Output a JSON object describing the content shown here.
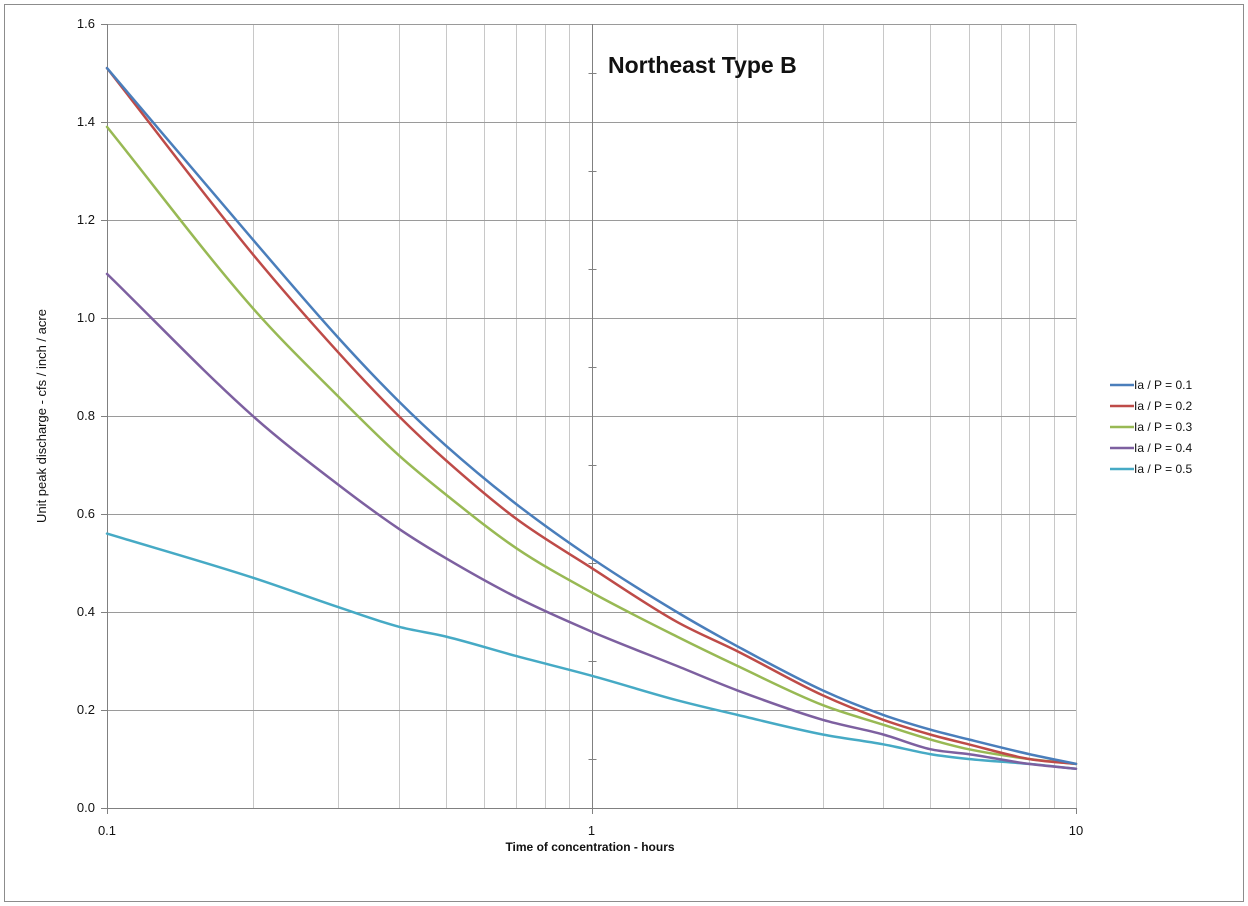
{
  "chart_data": {
    "type": "line",
    "title": "Northeast Type B",
    "xlabel": "Time of concentration - hours",
    "ylabel": "Unit peak discharge - cfs / inch / acre",
    "x_scale": "log",
    "xlim": [
      0.1,
      10
    ],
    "ylim": [
      0.0,
      1.6
    ],
    "x_ticks": [
      0.1,
      1,
      10
    ],
    "x_tick_labels": [
      "0.1",
      "1",
      "10"
    ],
    "y_ticks": [
      0.0,
      0.2,
      0.4,
      0.6,
      0.8,
      1.0,
      1.2,
      1.4,
      1.6
    ],
    "y_tick_labels": [
      "0.0",
      "0.2",
      "0.4",
      "0.6",
      "0.8",
      "1.0",
      "1.2",
      "1.4",
      "1.6"
    ],
    "grid": true,
    "legend_position": "right",
    "x": [
      0.1,
      0.2,
      0.3,
      0.4,
      0.5,
      0.7,
      1,
      1.5,
      2,
      3,
      4,
      5,
      6,
      8,
      10
    ],
    "series": [
      {
        "name": "Ia / P = 0.1",
        "color": "#4a7ebb",
        "values": [
          1.51,
          1.16,
          0.96,
          0.83,
          0.74,
          0.62,
          0.51,
          0.4,
          0.33,
          0.24,
          0.19,
          0.16,
          0.14,
          0.11,
          0.09
        ]
      },
      {
        "name": "Ia / P = 0.2",
        "color": "#be4b48",
        "values": [
          1.51,
          1.13,
          0.93,
          0.8,
          0.71,
          0.59,
          0.49,
          0.38,
          0.32,
          0.23,
          0.18,
          0.15,
          0.13,
          0.1,
          0.09
        ]
      },
      {
        "name": "Ia / P = 0.3",
        "color": "#98b954",
        "values": [
          1.39,
          1.02,
          0.84,
          0.72,
          0.64,
          0.53,
          0.44,
          0.35,
          0.29,
          0.21,
          0.17,
          0.14,
          0.12,
          0.1,
          0.09
        ]
      },
      {
        "name": "Ia / P = 0.4",
        "color": "#7d60a0",
        "values": [
          1.09,
          0.8,
          0.66,
          0.57,
          0.51,
          0.43,
          0.36,
          0.29,
          0.24,
          0.18,
          0.15,
          0.12,
          0.11,
          0.09,
          0.08
        ]
      },
      {
        "name": "Ia / P = 0.5",
        "color": "#46aac5",
        "values": [
          0.56,
          0.47,
          0.41,
          0.37,
          0.35,
          0.31,
          0.27,
          0.22,
          0.19,
          0.15,
          0.13,
          0.11,
          0.1,
          0.09,
          0.08
        ]
      }
    ]
  }
}
